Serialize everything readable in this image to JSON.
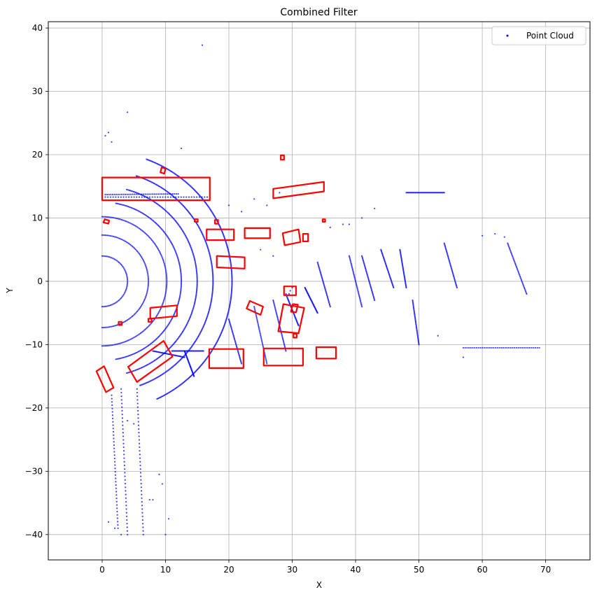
{
  "chart_data": {
    "type": "scatter",
    "title": "Combined Filter",
    "xlabel": "X",
    "ylabel": "Y",
    "xlim": [
      -8.5,
      77
    ],
    "ylim": [
      -44,
      41
    ],
    "xticks": [
      0,
      10,
      20,
      30,
      40,
      50,
      60,
      70
    ],
    "yticks": [
      -40,
      -30,
      -20,
      -10,
      0,
      10,
      20,
      30,
      40
    ],
    "xtick_labels": [
      "0",
      "10",
      "20",
      "30",
      "40",
      "50",
      "60",
      "70"
    ],
    "ytick_labels": [
      "−40",
      "−30",
      "−20",
      "−10",
      "0",
      "10",
      "20",
      "30",
      "40"
    ],
    "grid": true,
    "legend": {
      "position": "top-right",
      "entries": [
        {
          "label": "Point Cloud",
          "color": "#0000ff",
          "marker": "point"
        }
      ]
    },
    "colors": {
      "points": "#0000ff",
      "boxes": "#ff0000",
      "grid": "#b0b0b0"
    },
    "series": [
      {
        "name": "Point Cloud",
        "kind": "arcs",
        "description_arcs": [
          {
            "r": 4,
            "a0": 0,
            "a1": 180
          },
          {
            "r": 7.3,
            "a0": 0,
            "a1": 180
          },
          {
            "r": 10.2,
            "a0": 0,
            "a1": 180
          },
          {
            "r": 12.5,
            "a0": 10,
            "a1": 170
          },
          {
            "r": 15.0,
            "a0": 15,
            "a1": 165
          },
          {
            "r": 17.5,
            "a0": 18,
            "a1": 160
          },
          {
            "r": 20.5,
            "a0": 20,
            "a1": 155
          }
        ],
        "segments": [
          {
            "x": [
              0.5,
              12
            ],
            "y": [
              13.7,
              13.8
            ]
          },
          {
            "x": [
              0.5,
              17
            ],
            "y": [
              13.3,
              13.3
            ]
          },
          {
            "x": [
              11,
              16
            ],
            "y": [
              -11,
              -11
            ]
          },
          {
            "x": [
              13,
              14.5
            ],
            "y": [
              -11,
              -15
            ]
          },
          {
            "x": [
              8,
              13
            ],
            "y": [
              -11,
              -12
            ]
          },
          {
            "x": [
              3,
              4
            ],
            "y": [
              -17,
              -40
            ]
          },
          {
            "x": [
              5.5,
              6.5
            ],
            "y": [
              -17,
              -40
            ]
          },
          {
            "x": [
              1.5,
              2.5
            ],
            "y": [
              -18,
              -39
            ]
          },
          {
            "x": [
              20,
              22
            ],
            "y": [
              -6,
              -13
            ]
          },
          {
            "x": [
              24,
              26
            ],
            "y": [
              -4,
              -13
            ]
          },
          {
            "x": [
              27,
              29
            ],
            "y": [
              -3,
              -11
            ]
          },
          {
            "x": [
              29,
              31
            ],
            "y": [
              -2,
              -7
            ]
          },
          {
            "x": [
              32,
              34
            ],
            "y": [
              -1,
              -5
            ]
          },
          {
            "x": [
              34,
              36
            ],
            "y": [
              3,
              -4
            ]
          },
          {
            "x": [
              39,
              41
            ],
            "y": [
              4,
              -4
            ]
          },
          {
            "x": [
              41,
              43
            ],
            "y": [
              4,
              -3
            ]
          },
          {
            "x": [
              44,
              46
            ],
            "y": [
              5,
              -1
            ]
          },
          {
            "x": [
              47,
              48
            ],
            "y": [
              5,
              -1
            ]
          },
          {
            "x": [
              54,
              56
            ],
            "y": [
              6,
              -1
            ]
          },
          {
            "x": [
              64,
              67
            ],
            "y": [
              6,
              -2
            ]
          },
          {
            "x": [
              49,
              50
            ],
            "y": [
              -3,
              -10
            ]
          },
          {
            "x": [
              57,
              69
            ],
            "y": [
              -10.5,
              -10.5
            ]
          },
          {
            "x": [
              48,
              54
            ],
            "y": [
              14,
              14
            ]
          }
        ],
        "points": [
          [
            0.5,
            23
          ],
          [
            1,
            23.5
          ],
          [
            1.5,
            22
          ],
          [
            4,
            26.7
          ],
          [
            12.5,
            21
          ],
          [
            15.8,
            37.3
          ],
          [
            1,
            -38
          ],
          [
            2,
            -39
          ],
          [
            3,
            -40
          ],
          [
            10,
            -40
          ],
          [
            10.5,
            -37.5
          ],
          [
            9,
            -30.5
          ],
          [
            9.5,
            -32
          ],
          [
            7.5,
            -34.5
          ],
          [
            8,
            -34.5
          ],
          [
            4,
            -22
          ],
          [
            5,
            -22.5
          ],
          [
            53,
            -8.6
          ],
          [
            57,
            -12
          ],
          [
            63.5,
            7
          ],
          [
            60,
            7.2
          ],
          [
            62,
            7.5
          ],
          [
            39,
            9
          ],
          [
            41,
            10
          ],
          [
            43,
            11.5
          ],
          [
            38,
            9
          ],
          [
            36,
            8.5
          ],
          [
            20,
            12
          ],
          [
            22,
            11
          ],
          [
            24,
            13
          ],
          [
            26,
            12
          ],
          [
            28,
            14
          ],
          [
            30,
            13.5
          ],
          [
            29.5,
            -2
          ],
          [
            29.7,
            -1.5
          ],
          [
            30,
            -1
          ],
          [
            25,
            5
          ],
          [
            27,
            4
          ]
        ]
      }
    ],
    "boxes": [
      {
        "corners": [
          [
            0,
            12.8
          ],
          [
            17,
            12.8
          ],
          [
            17,
            16.4
          ],
          [
            0,
            16.4
          ]
        ]
      },
      {
        "corners": [
          [
            16.5,
            6.5
          ],
          [
            20.8,
            6.5
          ],
          [
            20.8,
            8.2
          ],
          [
            16.5,
            8.2
          ]
        ]
      },
      {
        "corners": [
          [
            22.5,
            6.8
          ],
          [
            26.5,
            6.8
          ],
          [
            26.5,
            8.4
          ],
          [
            22.5,
            8.4
          ]
        ]
      },
      {
        "corners": [
          [
            27,
            13.1
          ],
          [
            35,
            14.2
          ],
          [
            35,
            15.7
          ],
          [
            27,
            14.6
          ]
        ]
      },
      {
        "corners": [
          [
            28.2,
            19.2
          ],
          [
            28.7,
            19.2
          ],
          [
            28.7,
            19.9
          ],
          [
            28.2,
            19.9
          ]
        ]
      },
      {
        "corners": [
          [
            9.2,
            17.2
          ],
          [
            9.8,
            17
          ],
          [
            10,
            17.8
          ],
          [
            9.4,
            18.0
          ]
        ]
      },
      {
        "corners": [
          [
            18.1,
            2.2
          ],
          [
            22.5,
            2
          ],
          [
            22.5,
            3.8
          ],
          [
            18.1,
            4
          ]
        ]
      },
      {
        "corners": [
          [
            28.8,
            5.7
          ],
          [
            31.3,
            6.2
          ],
          [
            31,
            8.2
          ],
          [
            28.5,
            7.6
          ]
        ]
      },
      {
        "corners": [
          [
            31.7,
            6.3
          ],
          [
            32.5,
            6.3
          ],
          [
            32.5,
            7.5
          ],
          [
            31.7,
            7.5
          ]
        ]
      },
      {
        "corners": [
          [
            28.7,
            -2.2
          ],
          [
            30.6,
            -2.2
          ],
          [
            30.6,
            -0.8
          ],
          [
            28.7,
            -0.8
          ]
        ]
      },
      {
        "corners": [
          [
            7.6,
            -5.9
          ],
          [
            11.8,
            -5.5
          ],
          [
            11.8,
            -3.8
          ],
          [
            7.6,
            -4.2
          ]
        ]
      },
      {
        "corners": [
          [
            22.8,
            -4.3
          ],
          [
            25,
            -5.3
          ],
          [
            25.4,
            -4.0
          ],
          [
            23.3,
            -3.1
          ]
        ]
      },
      {
        "corners": [
          [
            27.8,
            -7.9
          ],
          [
            31,
            -8.2
          ],
          [
            31.9,
            -4.2
          ],
          [
            28.6,
            -3.6
          ]
        ]
      },
      {
        "corners": [
          [
            29.8,
            -4.8
          ],
          [
            30.6,
            -4.9
          ],
          [
            30.9,
            -3.7
          ],
          [
            30.1,
            -3.6
          ]
        ]
      },
      {
        "corners": [
          [
            30.2,
            -8.9
          ],
          [
            30.7,
            -8.9
          ],
          [
            30.7,
            -8.3
          ],
          [
            30.2,
            -8.3
          ]
        ]
      },
      {
        "corners": [
          [
            16.9,
            -13.7
          ],
          [
            22.3,
            -13.7
          ],
          [
            22.3,
            -10.7
          ],
          [
            16.9,
            -10.7
          ]
        ]
      },
      {
        "corners": [
          [
            25.5,
            -13.3
          ],
          [
            31.7,
            -13.3
          ],
          [
            31.7,
            -10.6
          ],
          [
            25.5,
            -10.6
          ]
        ]
      },
      {
        "corners": [
          [
            33.8,
            -12.2
          ],
          [
            36.9,
            -12.2
          ],
          [
            36.9,
            -10.4
          ],
          [
            33.8,
            -10.4
          ]
        ]
      },
      {
        "corners": [
          [
            4.1,
            -13.5
          ],
          [
            9.7,
            -9.4
          ],
          [
            11.1,
            -11.9
          ],
          [
            5.5,
            -15.9
          ]
        ]
      },
      {
        "corners": [
          [
            -0.9,
            -14.2
          ],
          [
            0.6,
            -17.5
          ],
          [
            1.8,
            -16.8
          ],
          [
            0.3,
            -13.4
          ]
        ]
      },
      {
        "corners": [
          [
            2.6,
            -6.9
          ],
          [
            3.1,
            -6.9
          ],
          [
            3.1,
            -6.4
          ],
          [
            2.6,
            -6.4
          ]
        ]
      },
      {
        "corners": [
          [
            7.3,
            -6.4
          ],
          [
            7.8,
            -6.4
          ],
          [
            7.8,
            -5.9
          ],
          [
            7.3,
            -5.9
          ]
        ]
      },
      {
        "corners": [
          [
            0.2,
            9.3
          ],
          [
            1,
            9.1
          ],
          [
            1.1,
            9.6
          ],
          [
            0.4,
            9.8
          ]
        ]
      },
      {
        "corners": [
          [
            17.8,
            9.1
          ],
          [
            18.3,
            9.1
          ],
          [
            18.3,
            9.7
          ],
          [
            17.8,
            9.7
          ]
        ]
      },
      {
        "corners": [
          [
            14.6,
            9.4
          ],
          [
            15.1,
            9.4
          ],
          [
            15.1,
            9.8
          ],
          [
            14.6,
            9.8
          ]
        ]
      },
      {
        "corners": [
          [
            34.8,
            9.4
          ],
          [
            35.2,
            9.4
          ],
          [
            35.2,
            9.8
          ],
          [
            34.8,
            9.8
          ]
        ]
      }
    ]
  }
}
